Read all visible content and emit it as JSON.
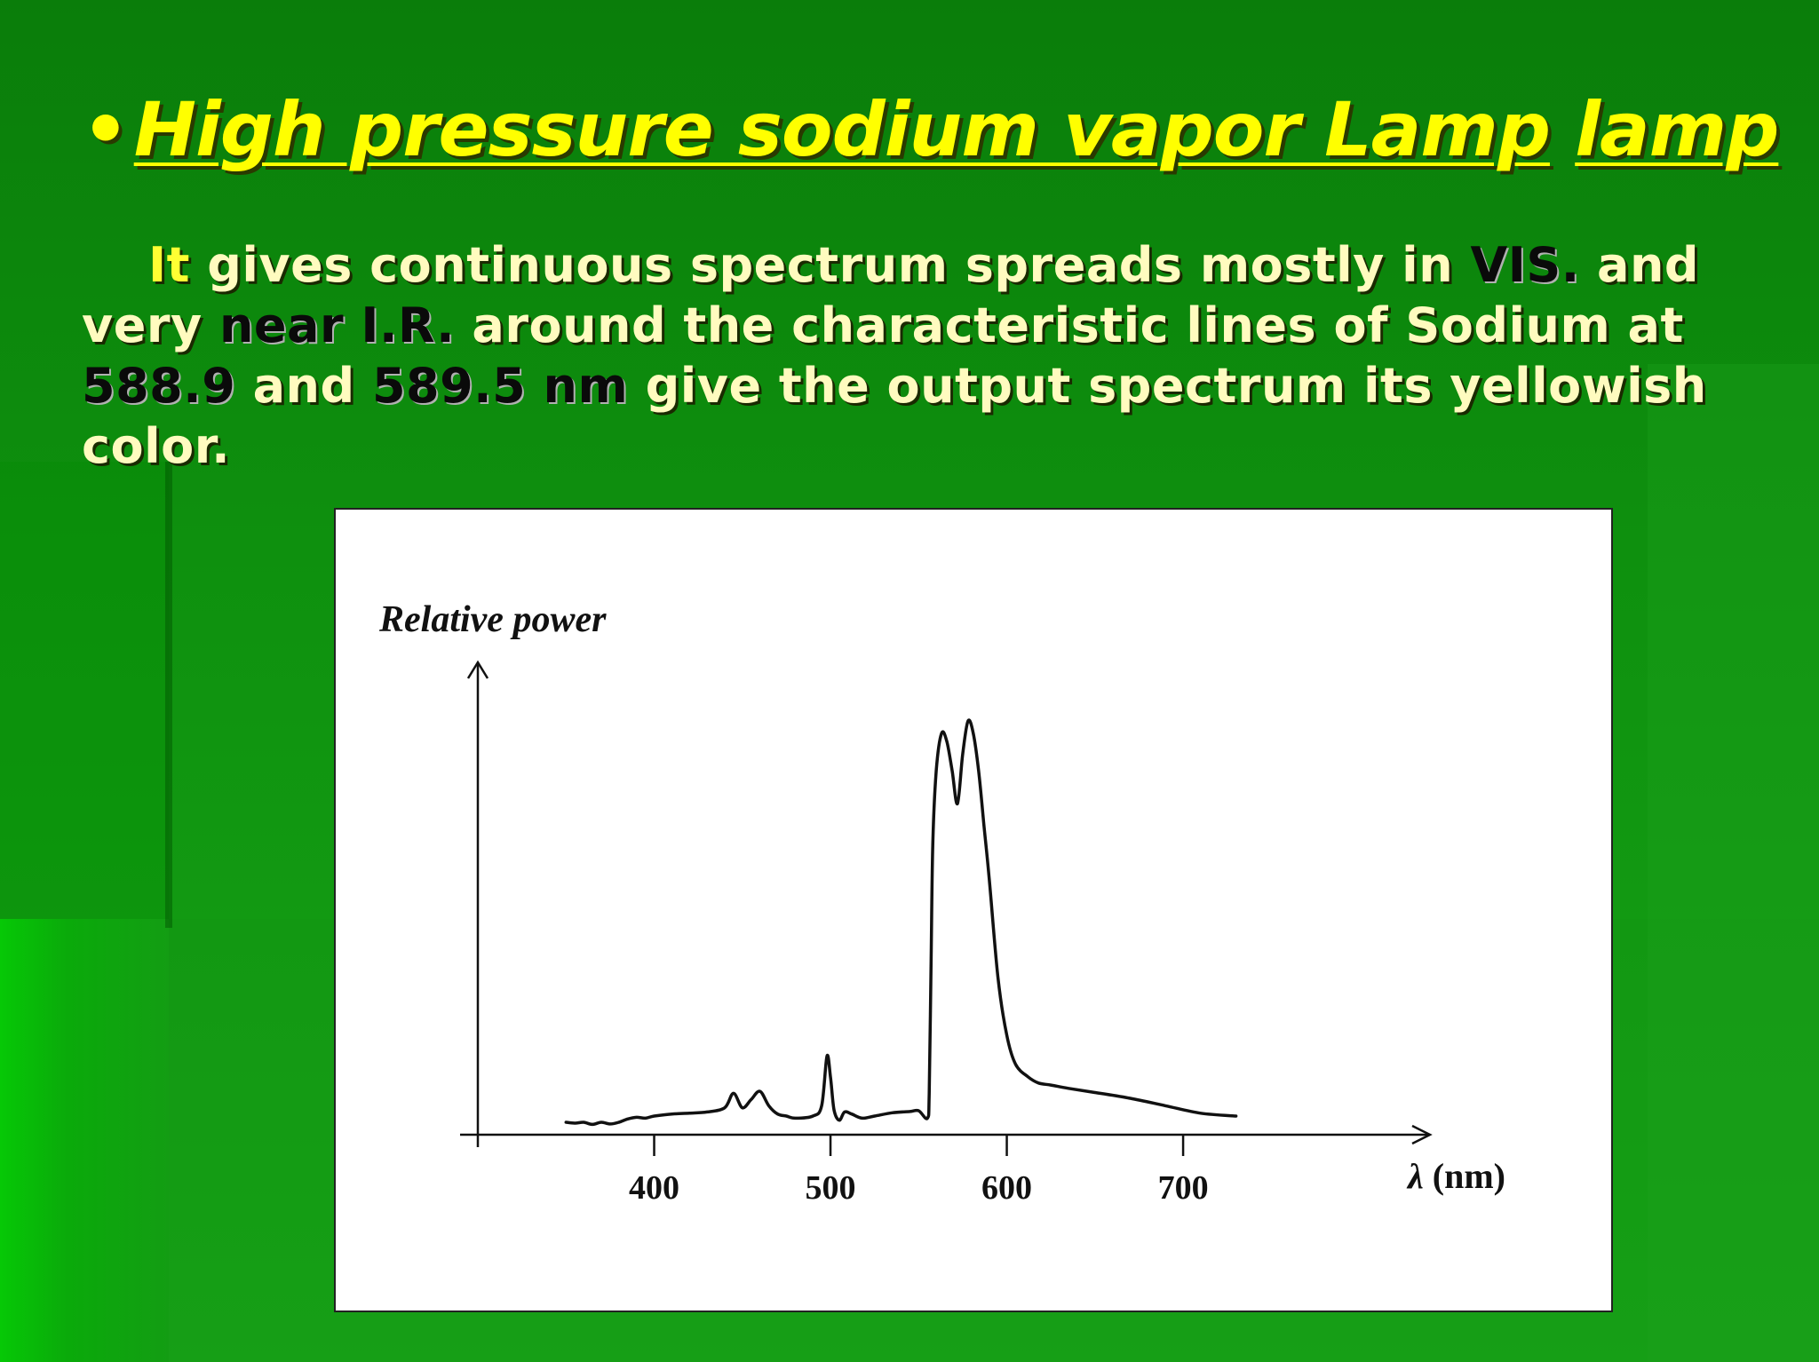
{
  "slide": {
    "bullet": "•",
    "title_part1": "High pressure sodium vapor Lamp",
    "title_part2": "lamp",
    "paragraph": {
      "it": "It",
      "t1": " gives continuous spectrum spreads mostly in ",
      "vis": "VIS.",
      "t2": " and very ",
      "near_ir": "near I.R.",
      "t3": " around the characteristic lines of Sodium at ",
      "n1": "588.9",
      "t4": " and ",
      "n2": "589.5 nm",
      "t5": " give the output spectrum its yellowish color."
    }
  },
  "colors": {
    "background": "#0f8f0f",
    "title": "#ffff00",
    "body_text": "#fffbbf",
    "highlight_dark": "#0a0a0a",
    "plot_line": "#111111"
  },
  "chart_data": {
    "type": "line",
    "title": "",
    "ylabel": "Relative power",
    "xlabel_symbol": "λ",
    "xlabel_unit": "(nm)",
    "x_ticks": [
      400,
      500,
      600,
      700
    ],
    "xlim": [
      300,
      840
    ],
    "ylim": [
      0,
      100
    ],
    "grid": false,
    "legend": "none",
    "series": [
      {
        "x": [
          350,
          355,
          360,
          365,
          370,
          375,
          380,
          385,
          390,
          395,
          400,
          410,
          420,
          430,
          440,
          445,
          450,
          455,
          460,
          465,
          470,
          475,
          480,
          490,
          495,
          498,
          500,
          502,
          505,
          508,
          512,
          518,
          525,
          535,
          545,
          550,
          555,
          556,
          557,
          558,
          560,
          563,
          566,
          569,
          572,
          575,
          578,
          581,
          584,
          587,
          590,
          595,
          600,
          605,
          612,
          618,
          625,
          635,
          650,
          670,
          690,
          710,
          730
        ],
        "y": [
          3,
          2.8,
          3,
          2.5,
          3,
          2.6,
          3,
          3.8,
          4.2,
          4,
          4.5,
          5,
          5.2,
          5.5,
          6.5,
          10,
          6.5,
          8.5,
          10.5,
          7,
          5,
          4.5,
          4,
          4.5,
          7,
          19,
          14,
          6,
          3.5,
          5.5,
          5,
          4,
          4.5,
          5.3,
          5.6,
          5.8,
          4,
          10,
          40,
          70,
          88,
          97,
          95,
          88,
          80,
          92,
          100,
          97,
          88,
          75,
          62,
          38,
          24,
          17,
          14,
          12.5,
          12,
          11.2,
          10.2,
          8.8,
          7,
          5.2,
          4.5
        ]
      }
    ]
  }
}
